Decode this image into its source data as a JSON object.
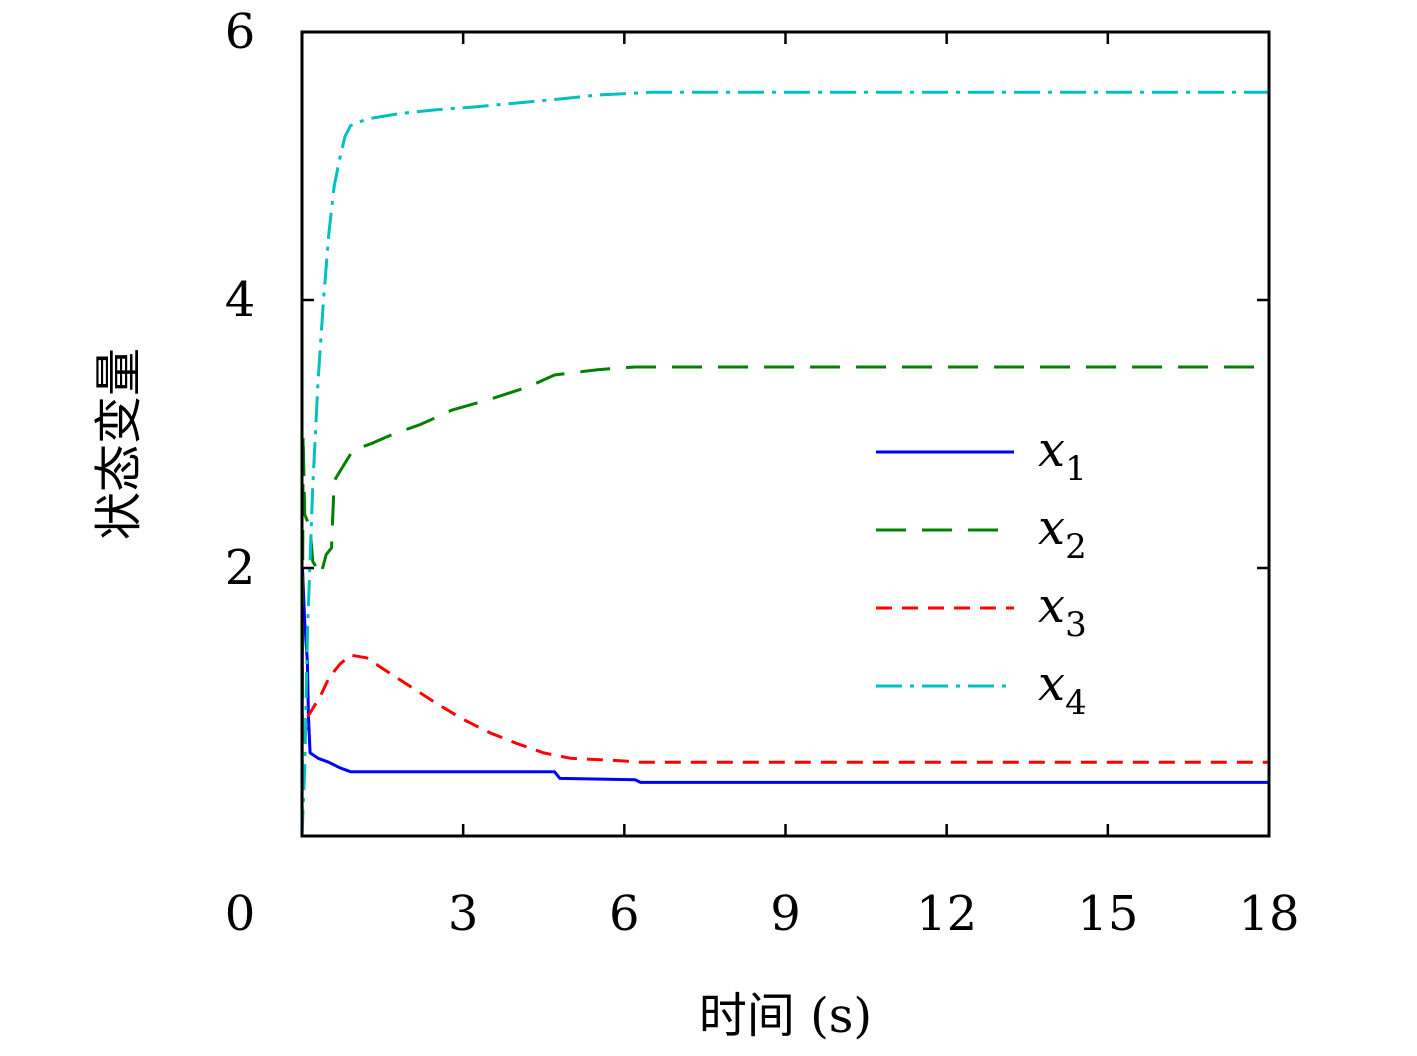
{
  "chart_data": {
    "type": "line",
    "xlabel": "时间 (s)",
    "ylabel": "状态变量",
    "xlim": [
      0,
      18
    ],
    "ylim": [
      0,
      6
    ],
    "x_ticks": [
      0,
      3,
      6,
      9,
      12,
      15,
      18
    ],
    "y_ticks": [
      2,
      4,
      6
    ],
    "x_tick_labels": [
      "0",
      "3",
      "6",
      "9",
      "12",
      "15",
      "18"
    ],
    "y_tick_labels": [
      "2",
      "4",
      "6"
    ],
    "grid": false,
    "legend_position": "right",
    "series": [
      {
        "name": "x1",
        "label_base": "x",
        "label_sub": "1",
        "color": "#0000ff",
        "style": "solid",
        "points": [
          [
            0.0,
            0.0
          ],
          [
            0.01,
            2.0
          ],
          [
            0.05,
            1.6
          ],
          [
            0.1,
            1.3
          ],
          [
            0.12,
            0.9
          ],
          [
            0.15,
            0.62
          ],
          [
            0.3,
            0.58
          ],
          [
            0.5,
            0.55
          ],
          [
            0.7,
            0.51
          ],
          [
            0.9,
            0.48
          ],
          [
            4.7,
            0.48
          ],
          [
            4.8,
            0.43
          ],
          [
            6.2,
            0.42
          ],
          [
            6.3,
            0.4
          ],
          [
            6.5,
            0.4
          ],
          [
            18.0,
            0.4
          ]
        ]
      },
      {
        "name": "x2",
        "label_base": "x",
        "label_sub": "2",
        "color": "#008000",
        "style": "dash",
        "points": [
          [
            0.0,
            0.0
          ],
          [
            0.02,
            3.0
          ],
          [
            0.05,
            2.4
          ],
          [
            0.15,
            2.3
          ],
          [
            0.2,
            2.05
          ],
          [
            0.35,
            1.95
          ],
          [
            0.45,
            2.1
          ],
          [
            0.55,
            2.15
          ],
          [
            0.6,
            2.65
          ],
          [
            0.75,
            2.75
          ],
          [
            0.95,
            2.88
          ],
          [
            1.3,
            2.93
          ],
          [
            1.7,
            3.0
          ],
          [
            2.2,
            3.07
          ],
          [
            2.8,
            3.18
          ],
          [
            3.5,
            3.26
          ],
          [
            4.2,
            3.35
          ],
          [
            4.7,
            3.44
          ],
          [
            5.5,
            3.48
          ],
          [
            6.2,
            3.5
          ],
          [
            18.0,
            3.5
          ]
        ]
      },
      {
        "name": "x3",
        "label_base": "x",
        "label_sub": "3",
        "color": "#ff0000",
        "style": "short-dash",
        "points": [
          [
            0.0,
            0.7
          ],
          [
            0.05,
            0.75
          ],
          [
            0.12,
            0.9
          ],
          [
            0.2,
            0.95
          ],
          [
            0.35,
            1.05
          ],
          [
            0.5,
            1.18
          ],
          [
            0.7,
            1.28
          ],
          [
            0.9,
            1.35
          ],
          [
            1.2,
            1.33
          ],
          [
            1.5,
            1.25
          ],
          [
            2.0,
            1.12
          ],
          [
            2.5,
            0.99
          ],
          [
            3.0,
            0.87
          ],
          [
            3.5,
            0.77
          ],
          [
            4.0,
            0.69
          ],
          [
            4.5,
            0.62
          ],
          [
            5.0,
            0.58
          ],
          [
            5.5,
            0.57
          ],
          [
            6.0,
            0.56
          ],
          [
            6.3,
            0.55
          ],
          [
            18.0,
            0.55
          ]
        ]
      },
      {
        "name": "x4",
        "label_base": "x",
        "label_sub": "4",
        "color": "#00c0c0",
        "style": "dash-dot",
        "points": [
          [
            0.0,
            0.0
          ],
          [
            0.05,
            0.5
          ],
          [
            0.1,
            1.5
          ],
          [
            0.2,
            2.6
          ],
          [
            0.3,
            3.4
          ],
          [
            0.4,
            4.0
          ],
          [
            0.5,
            4.5
          ],
          [
            0.6,
            4.85
          ],
          [
            0.7,
            5.05
          ],
          [
            0.8,
            5.22
          ],
          [
            0.9,
            5.3
          ],
          [
            1.2,
            5.35
          ],
          [
            1.8,
            5.39
          ],
          [
            2.5,
            5.42
          ],
          [
            3.2,
            5.44
          ],
          [
            4.0,
            5.47
          ],
          [
            4.8,
            5.5
          ],
          [
            5.5,
            5.53
          ],
          [
            6.5,
            5.55
          ],
          [
            18.0,
            5.55
          ]
        ]
      }
    ]
  }
}
